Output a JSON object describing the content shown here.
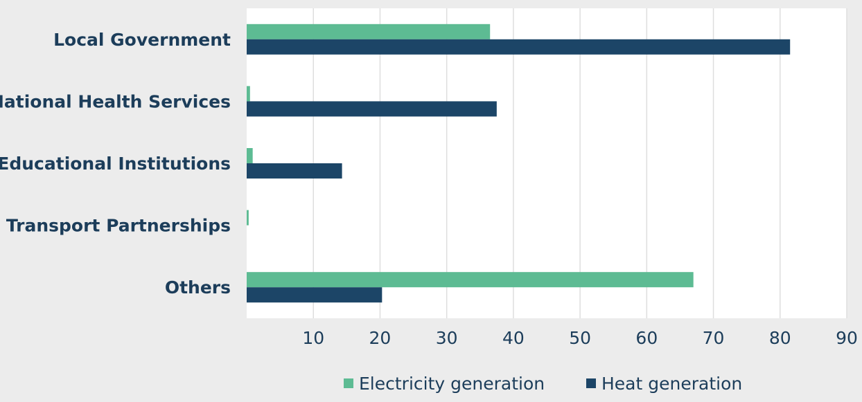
{
  "chart_data": {
    "type": "bar",
    "orientation": "horizontal",
    "categories": [
      "Local Government",
      "National Health Services",
      "Educational Institutions",
      "Transport Partnerships",
      "Others"
    ],
    "series": [
      {
        "name": "Electricity generation",
        "color": "#5dbb93",
        "values": [
          36.5,
          0.5,
          0.9,
          0.3,
          67.0
        ]
      },
      {
        "name": "Heat generation",
        "color": "#1c4567",
        "values": [
          81.5,
          37.5,
          14.3,
          0,
          20.3
        ]
      }
    ],
    "xlim": [
      0,
      90
    ],
    "xticks": [
      10,
      20,
      30,
      40,
      50,
      60,
      70,
      80,
      90
    ],
    "grid": true,
    "legend_position": "bottom-center",
    "title": "",
    "xlabel": "",
    "ylabel": ""
  }
}
